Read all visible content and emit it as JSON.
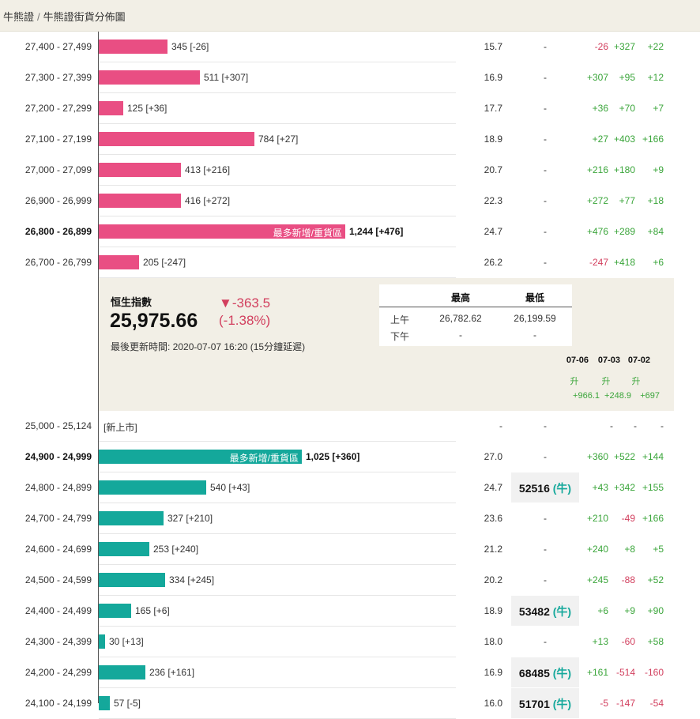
{
  "breadcrumb": {
    "home": "牛熊證",
    "separator": "/",
    "current": "牛熊證街貨分佈圖"
  },
  "upper_rows": [
    {
      "range": "27,400 - 27,499",
      "value": 345,
      "count": "345 [-26]",
      "price": "15.7",
      "near": "-",
      "c1": "-26",
      "c2": "+327",
      "c3": "+22"
    },
    {
      "range": "27,300 - 27,399",
      "value": 511,
      "count": "511 [+307]",
      "price": "16.9",
      "near": "-",
      "c1": "+307",
      "c2": "+95",
      "c3": "+12"
    },
    {
      "range": "27,200 - 27,299",
      "value": 125,
      "count": "125 [+36]",
      "price": "17.7",
      "near": "-",
      "c1": "+36",
      "c2": "+70",
      "c3": "+7"
    },
    {
      "range": "27,100 - 27,199",
      "value": 784,
      "count": "784 [+27]",
      "price": "18.9",
      "near": "-",
      "c1": "+27",
      "c2": "+403",
      "c3": "+166"
    },
    {
      "range": "27,000 - 27,099",
      "value": 413,
      "count": "413 [+216]",
      "price": "20.7",
      "near": "-",
      "c1": "+216",
      "c2": "+180",
      "c3": "+9"
    },
    {
      "range": "26,900 - 26,999",
      "value": 416,
      "count": "416 [+272]",
      "price": "22.3",
      "near": "-",
      "c1": "+272",
      "c2": "+77",
      "c3": "+18"
    },
    {
      "range": "26,800 - 26,899",
      "value": 1244,
      "count": "1,244 [+476]",
      "bold": true,
      "tag": "最多新增/重貨區",
      "price": "24.7",
      "near": "-",
      "c1": "+476",
      "c2": "+289",
      "c3": "+84"
    },
    {
      "range": "26,700 - 26,799",
      "value": 205,
      "count": "205 [-247]",
      "price": "26.2",
      "near": "-",
      "c1": "-247",
      "c2": "+418",
      "c3": "+6"
    }
  ],
  "index": {
    "name": "恒生指數",
    "value": "25,975.66",
    "change": "▼-363.5",
    "change_pct": "(-1.38%)",
    "update": "最後更新時間: 2020-07-07 16:20 (15分鐘延遲)",
    "high_label": "最高",
    "low_label": "最低",
    "am_label": "上午",
    "pm_label": "下午",
    "am_high": "26,782.62",
    "am_low": "26,199.59",
    "pm_high": "-",
    "pm_low": "-"
  },
  "history": [
    {
      "date": "07-06",
      "dir": "升",
      "val": "+966.1"
    },
    {
      "date": "07-03",
      "dir": "升",
      "val": "+248.9"
    },
    {
      "date": "07-02",
      "dir": "升",
      "val": "+697"
    }
  ],
  "new_row": {
    "range": "25,000 - 25,124",
    "tag": "[新上市]",
    "price": "-",
    "near": "-",
    "c1": "-",
    "c2": "-",
    "c3": "-"
  },
  "lower_rows": [
    {
      "range": "24,900 - 24,999",
      "value": 1025,
      "count": "1,025 [+360]",
      "bold": true,
      "tag": "最多新增/重貨區",
      "price": "27.0",
      "near": "-",
      "c1": "+360",
      "c2": "+522",
      "c3": "+144"
    },
    {
      "range": "24,800 - 24,899",
      "value": 540,
      "count": "540 [+43]",
      "price": "24.7",
      "near": "52516",
      "near_tag": "(牛)",
      "c1": "+43",
      "c2": "+342",
      "c3": "+155"
    },
    {
      "range": "24,700 - 24,799",
      "value": 327,
      "count": "327 [+210]",
      "price": "23.6",
      "near": "-",
      "c1": "+210",
      "c2": "-49",
      "c3": "+166"
    },
    {
      "range": "24,600 - 24,699",
      "value": 253,
      "count": "253 [+240]",
      "price": "21.2",
      "near": "-",
      "c1": "+240",
      "c2": "+8",
      "c3": "+5"
    },
    {
      "range": "24,500 - 24,599",
      "value": 334,
      "count": "334 [+245]",
      "price": "20.2",
      "near": "-",
      "c1": "+245",
      "c2": "-88",
      "c3": "+52"
    },
    {
      "range": "24,400 - 24,499",
      "value": 165,
      "count": "165 [+6]",
      "price": "18.9",
      "near": "53482",
      "near_tag": "(牛)",
      "c1": "+6",
      "c2": "+9",
      "c3": "+90"
    },
    {
      "range": "24,300 - 24,399",
      "value": 30,
      "count": "30 [+13]",
      "price": "18.0",
      "near": "-",
      "c1": "+13",
      "c2": "-60",
      "c3": "+58"
    },
    {
      "range": "24,200 - 24,299",
      "value": 236,
      "count": "236 [+161]",
      "price": "16.9",
      "near": "68485",
      "near_tag": "(牛)",
      "c1": "+161",
      "c2": "-514",
      "c3": "-160"
    },
    {
      "range": "24,100 - 24,199",
      "value": 57,
      "count": "57 [-5]",
      "price": "16.0",
      "near": "51701",
      "near_tag": "(牛)",
      "c1": "-5",
      "c2": "-147",
      "c3": "-54"
    }
  ],
  "colors": {
    "bull": "#e94e83",
    "bear": "#14a89b",
    "positive": "#3aa53a",
    "negative": "#d23f5e"
  }
}
